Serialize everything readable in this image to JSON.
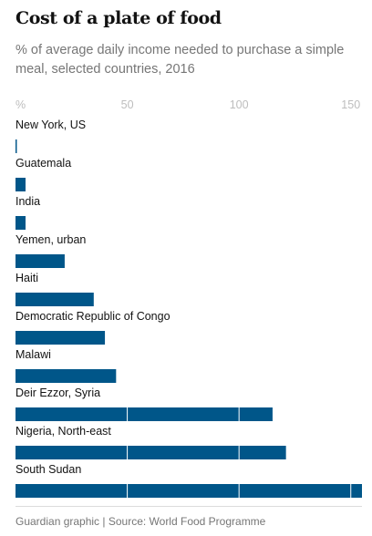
{
  "header": {
    "title": "Cost of a plate of food",
    "subtitle": "% of average daily income needed to purchase a simple meal, selected countries, 2016"
  },
  "footer": {
    "source": "Guardian graphic | Source: World Food Programme"
  },
  "colors": {
    "bar": "#005689",
    "grid": "#ffffff",
    "tick_text": "#bdbdbd",
    "label_text": "#121212",
    "muted_text": "#767676"
  },
  "chart_data": {
    "type": "bar",
    "orientation": "horizontal",
    "title": "Cost of a plate of food",
    "subtitle": "% of average daily income needed to purchase a simple meal, selected countries, 2016",
    "xlabel": "",
    "ylabel": "",
    "xlim": [
      0,
      155
    ],
    "ticks": [
      {
        "value": 0,
        "label": "%"
      },
      {
        "value": 50,
        "label": "50"
      },
      {
        "value": 100,
        "label": "100"
      },
      {
        "value": 150,
        "label": "150"
      }
    ],
    "categories": [
      "New York, US",
      "Guatemala",
      "India",
      "Yemen, urban",
      "Haiti",
      "Democratic Republic of Congo",
      "Malawi",
      "Deir Ezzor, Syria",
      "Nigeria, North-east",
      "South Sudan"
    ],
    "values": [
      0.6,
      4.5,
      4.5,
      22,
      35,
      40,
      45,
      115,
      121,
      155
    ],
    "grid": true,
    "legend": "none"
  }
}
